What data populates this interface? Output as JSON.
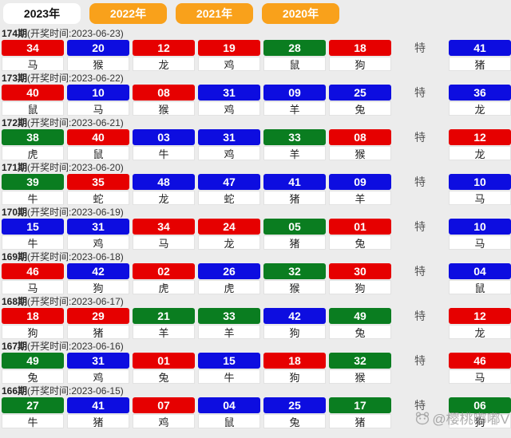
{
  "tabs": [
    {
      "label": "2023年",
      "active": true
    },
    {
      "label": "2022年",
      "active": false
    },
    {
      "label": "2021年",
      "active": false
    },
    {
      "label": "2020年",
      "active": false
    }
  ],
  "labels": {
    "special": "特"
  },
  "watermark": {
    "text": "@樱桃嘟嘟V",
    "icon": "panda-face-icon"
  },
  "colors": {
    "red": "#e60000",
    "blue": "#0d0de0",
    "green": "#0a7d20",
    "tab": "#f9a11b",
    "page_bg": "#ececec"
  },
  "draws": [
    {
      "period": "174期",
      "info": "(开奖时间:2023-06-23)",
      "numbers": [
        {
          "n": "34",
          "color": "red",
          "zodiac": "马"
        },
        {
          "n": "20",
          "color": "blue",
          "zodiac": "猴"
        },
        {
          "n": "12",
          "color": "red",
          "zodiac": "龙"
        },
        {
          "n": "19",
          "color": "red",
          "zodiac": "鸡"
        },
        {
          "n": "28",
          "color": "green",
          "zodiac": "鼠"
        },
        {
          "n": "18",
          "color": "red",
          "zodiac": "狗"
        }
      ],
      "special": {
        "n": "41",
        "color": "blue",
        "zodiac": "猪"
      }
    },
    {
      "period": "173期",
      "info": "(开奖时间:2023-06-22)",
      "numbers": [
        {
          "n": "40",
          "color": "red",
          "zodiac": "鼠"
        },
        {
          "n": "10",
          "color": "blue",
          "zodiac": "马"
        },
        {
          "n": "08",
          "color": "red",
          "zodiac": "猴"
        },
        {
          "n": "31",
          "color": "blue",
          "zodiac": "鸡"
        },
        {
          "n": "09",
          "color": "blue",
          "zodiac": "羊"
        },
        {
          "n": "25",
          "color": "blue",
          "zodiac": "兔"
        }
      ],
      "special": {
        "n": "36",
        "color": "blue",
        "zodiac": "龙"
      }
    },
    {
      "period": "172期",
      "info": "(开奖时间:2023-06-21)",
      "numbers": [
        {
          "n": "38",
          "color": "green",
          "zodiac": "虎"
        },
        {
          "n": "40",
          "color": "red",
          "zodiac": "鼠"
        },
        {
          "n": "03",
          "color": "blue",
          "zodiac": "牛"
        },
        {
          "n": "31",
          "color": "blue",
          "zodiac": "鸡"
        },
        {
          "n": "33",
          "color": "green",
          "zodiac": "羊"
        },
        {
          "n": "08",
          "color": "red",
          "zodiac": "猴"
        }
      ],
      "special": {
        "n": "12",
        "color": "red",
        "zodiac": "龙"
      }
    },
    {
      "period": "171期",
      "info": "(开奖时间:2023-06-20)",
      "numbers": [
        {
          "n": "39",
          "color": "green",
          "zodiac": "牛"
        },
        {
          "n": "35",
          "color": "red",
          "zodiac": "蛇"
        },
        {
          "n": "48",
          "color": "blue",
          "zodiac": "龙"
        },
        {
          "n": "47",
          "color": "blue",
          "zodiac": "蛇"
        },
        {
          "n": "41",
          "color": "blue",
          "zodiac": "猪"
        },
        {
          "n": "09",
          "color": "blue",
          "zodiac": "羊"
        }
      ],
      "special": {
        "n": "10",
        "color": "blue",
        "zodiac": "马"
      }
    },
    {
      "period": "170期",
      "info": "(开奖时间:2023-06-19)",
      "numbers": [
        {
          "n": "15",
          "color": "blue",
          "zodiac": "牛"
        },
        {
          "n": "31",
          "color": "blue",
          "zodiac": "鸡"
        },
        {
          "n": "34",
          "color": "red",
          "zodiac": "马"
        },
        {
          "n": "24",
          "color": "red",
          "zodiac": "龙"
        },
        {
          "n": "05",
          "color": "green",
          "zodiac": "猪"
        },
        {
          "n": "01",
          "color": "red",
          "zodiac": "兔"
        }
      ],
      "special": {
        "n": "10",
        "color": "blue",
        "zodiac": "马"
      }
    },
    {
      "period": "169期",
      "info": "(开奖时间:2023-06-18)",
      "numbers": [
        {
          "n": "46",
          "color": "red",
          "zodiac": "马"
        },
        {
          "n": "42",
          "color": "blue",
          "zodiac": "狗"
        },
        {
          "n": "02",
          "color": "red",
          "zodiac": "虎"
        },
        {
          "n": "26",
          "color": "blue",
          "zodiac": "虎"
        },
        {
          "n": "32",
          "color": "green",
          "zodiac": "猴"
        },
        {
          "n": "30",
          "color": "red",
          "zodiac": "狗"
        }
      ],
      "special": {
        "n": "04",
        "color": "blue",
        "zodiac": "鼠"
      }
    },
    {
      "period": "168期",
      "info": "(开奖时间:2023-06-17)",
      "numbers": [
        {
          "n": "18",
          "color": "red",
          "zodiac": "狗"
        },
        {
          "n": "29",
          "color": "red",
          "zodiac": "猪"
        },
        {
          "n": "21",
          "color": "green",
          "zodiac": "羊"
        },
        {
          "n": "33",
          "color": "green",
          "zodiac": "羊"
        },
        {
          "n": "42",
          "color": "blue",
          "zodiac": "狗"
        },
        {
          "n": "49",
          "color": "green",
          "zodiac": "兔"
        }
      ],
      "special": {
        "n": "12",
        "color": "red",
        "zodiac": "龙"
      }
    },
    {
      "period": "167期",
      "info": "(开奖时间:2023-06-16)",
      "numbers": [
        {
          "n": "49",
          "color": "green",
          "zodiac": "兔"
        },
        {
          "n": "31",
          "color": "blue",
          "zodiac": "鸡"
        },
        {
          "n": "01",
          "color": "red",
          "zodiac": "兔"
        },
        {
          "n": "15",
          "color": "blue",
          "zodiac": "牛"
        },
        {
          "n": "18",
          "color": "red",
          "zodiac": "狗"
        },
        {
          "n": "32",
          "color": "green",
          "zodiac": "猴"
        }
      ],
      "special": {
        "n": "46",
        "color": "red",
        "zodiac": "马"
      }
    },
    {
      "period": "166期",
      "info": "(开奖时间:2023-06-15)",
      "numbers": [
        {
          "n": "27",
          "color": "green",
          "zodiac": "牛"
        },
        {
          "n": "41",
          "color": "blue",
          "zodiac": "猪"
        },
        {
          "n": "07",
          "color": "red",
          "zodiac": "鸡"
        },
        {
          "n": "04",
          "color": "blue",
          "zodiac": "鼠"
        },
        {
          "n": "25",
          "color": "blue",
          "zodiac": "兔"
        },
        {
          "n": "17",
          "color": "green",
          "zodiac": "猪"
        }
      ],
      "special": {
        "n": "06",
        "color": "green",
        "zodiac": "狗"
      }
    }
  ]
}
